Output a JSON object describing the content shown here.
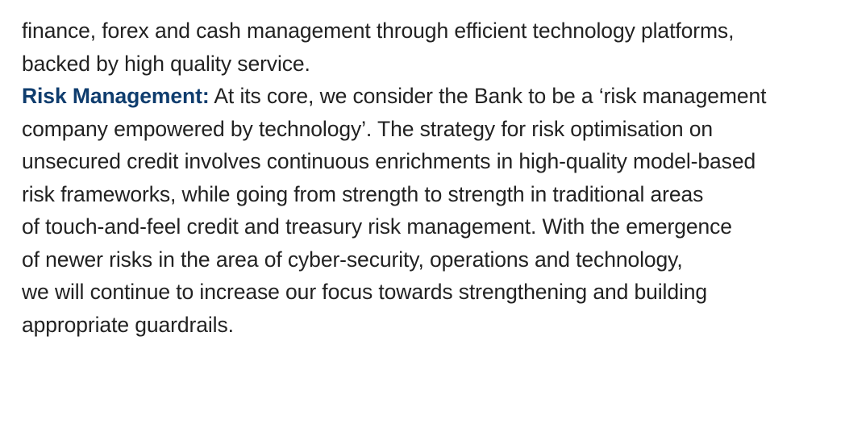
{
  "paragraph_1": {
    "lines": [
      "finance, forex and cash management through efficient technology platforms,",
      "backed by high quality service."
    ]
  },
  "paragraph_2": {
    "heading": "Risk Management:",
    "first_line_text": " At its core, we consider the Bank to be a ‘risk management",
    "lines": [
      "company empowered by technology’. The strategy for risk optimisation on",
      "unsecured credit involves continuous enrichments in high-quality model-based",
      "risk frameworks, while going from strength to strength in traditional areas",
      "of touch-and-feel credit and treasury risk management. With the emergence",
      "of newer risks in the area of cyber-security, operations and technology,",
      "we will continue to increase our focus towards strengthening and building",
      "appropriate guardrails."
    ]
  },
  "colors": {
    "heading": "#0f3d6e",
    "body_text": "#222222",
    "background": "#ffffff"
  }
}
